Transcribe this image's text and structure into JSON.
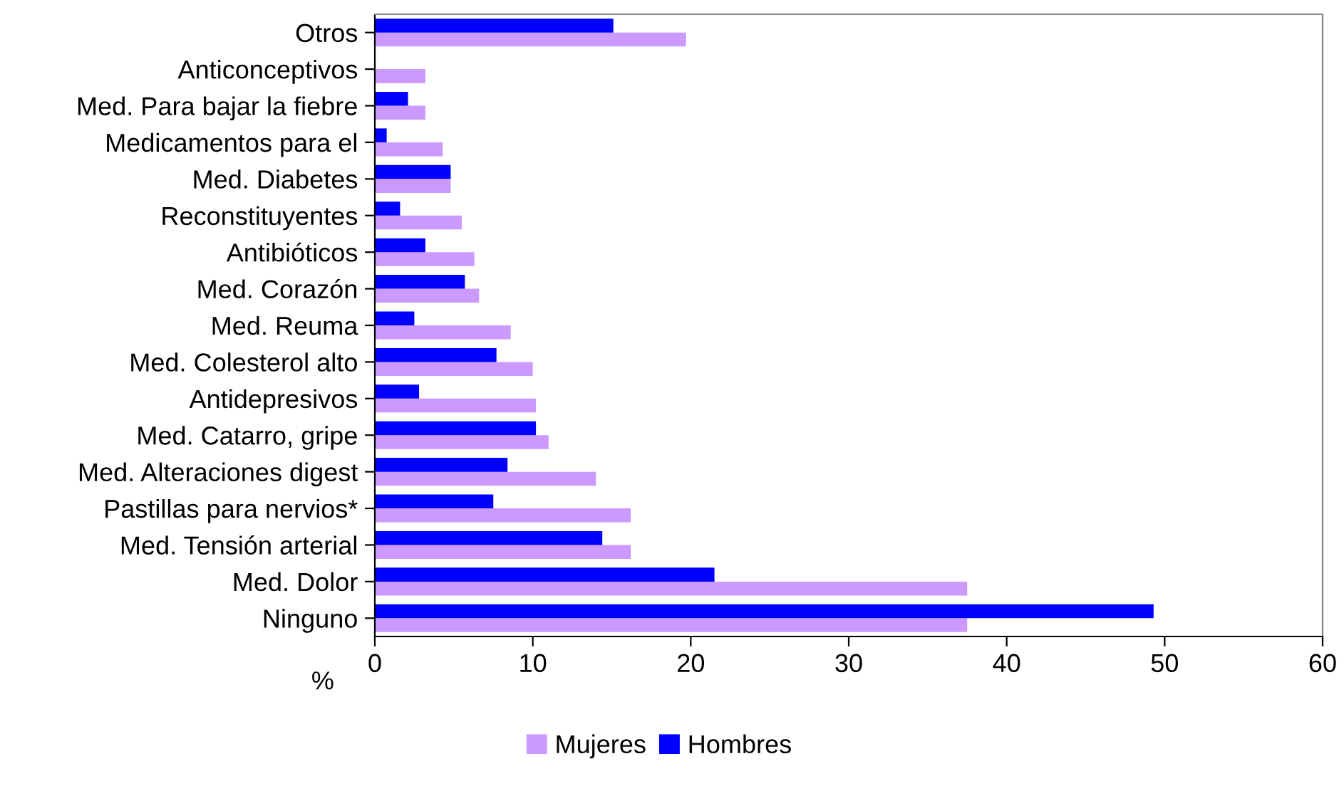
{
  "chart_data": {
    "type": "bar",
    "orientation": "horizontal",
    "xlabel": "%",
    "categories": [
      "Otros",
      "Anticonceptivos",
      "Med. Para bajar la fiebre",
      "Medicamentos para el",
      "Med. Diabetes",
      "Reconstituyentes",
      "Antibióticos",
      "Med. Corazón",
      "Med. Reuma",
      "Med. Colesterol alto",
      "Antidepresivos",
      "Med. Catarro, gripe",
      "Med. Alteraciones digest",
      "Pastillas para nervios*",
      "Med. Tensión arterial",
      "Med. Dolor",
      "Ninguno"
    ],
    "series": [
      {
        "name": "Mujeres",
        "color": "#cc99ff",
        "values": [
          19.7,
          3.2,
          3.2,
          4.3,
          4.8,
          5.5,
          6.3,
          6.6,
          8.6,
          10.0,
          10.2,
          11.0,
          14.0,
          16.2,
          16.2,
          37.5,
          37.5
        ]
      },
      {
        "name": "Hombres",
        "color": "#0000ff",
        "values": [
          15.1,
          null,
          2.1,
          0.75,
          4.8,
          1.6,
          3.2,
          5.7,
          2.5,
          7.7,
          2.8,
          10.2,
          8.4,
          7.5,
          14.4,
          21.5,
          49.3
        ]
      }
    ],
    "xlim": [
      0,
      60
    ],
    "xticks": [
      0,
      10,
      20,
      30,
      40,
      50,
      60
    ],
    "grid": false,
    "legend": "bottom"
  }
}
